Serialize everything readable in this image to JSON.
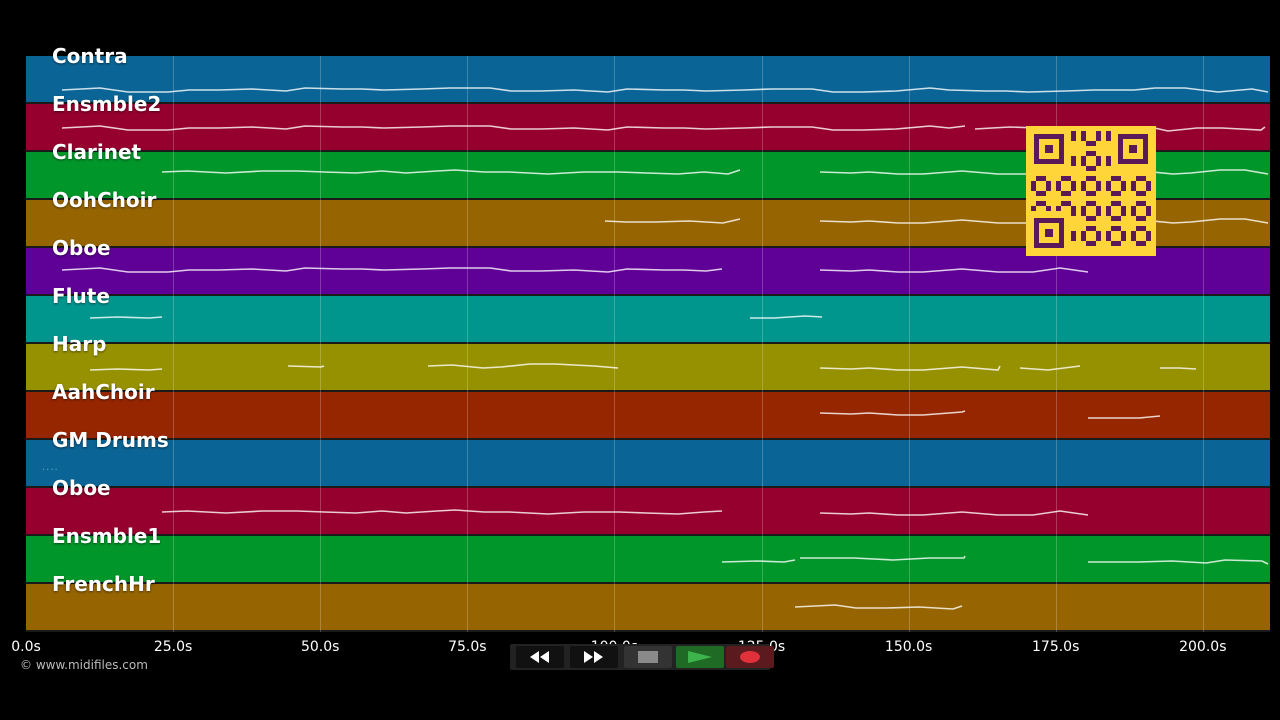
{
  "tracks": [
    {
      "name": "Contra",
      "color": "#0a6596"
    },
    {
      "name": "Ensmble2",
      "color": "#96002f"
    },
    {
      "name": "Clarinet",
      "color": "#00962a"
    },
    {
      "name": "OohChoir",
      "color": "#966400"
    },
    {
      "name": "Oboe",
      "color": "#5f0096"
    },
    {
      "name": "Flute",
      "color": "#00968e"
    },
    {
      "name": "Harp",
      "color": "#969100"
    },
    {
      "name": "AahChoir",
      "color": "#962600"
    },
    {
      "name": "GM Drums",
      "color": "#0a6596"
    },
    {
      "name": "Oboe",
      "color": "#96002f"
    },
    {
      "name": "Ensmble1",
      "color": "#00962a"
    },
    {
      "name": "FrenchHr",
      "color": "#966400"
    }
  ],
  "timeline": {
    "ticks": [
      "0.0s",
      "25.0s",
      "50.0s",
      "75.0s",
      "100.0s",
      "125.0s",
      "150.0s",
      "175.0s",
      "200.0s"
    ]
  },
  "copyright": "© www.midifiles.com",
  "transport": {
    "rewind_icon": "rewind-icon",
    "forward_icon": "fast-forward-icon",
    "stop_icon": "stop-icon",
    "play_icon": "play-icon",
    "record_icon": "record-icon",
    "stop_color": "#8a8a8a",
    "play_color": "#3cb44b",
    "record_color": "#e0303a"
  },
  "qr": {
    "color_bg": "#ffd53a",
    "color_fg": "#5a1a5a"
  }
}
